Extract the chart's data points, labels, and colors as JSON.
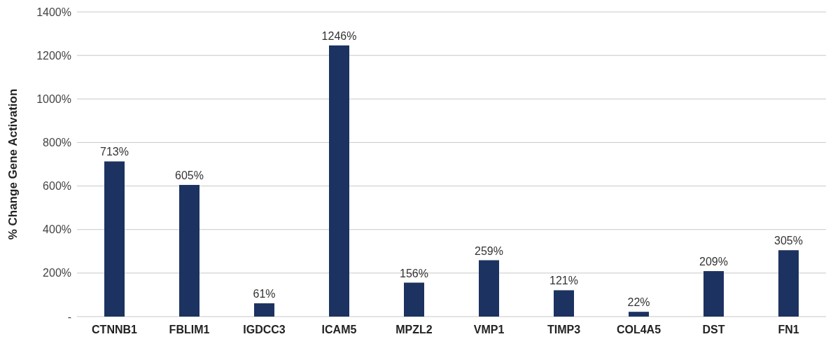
{
  "chart_data": {
    "type": "bar",
    "ylabel": "% Change Gene Activation",
    "categories": [
      "CTNNB1",
      "FBLIM1",
      "IGDCC3",
      "ICAM5",
      "MPZL2",
      "VMP1",
      "TIMP3",
      "COL4A5",
      "DST",
      "FN1"
    ],
    "values": [
      713,
      605,
      61,
      1246,
      156,
      259,
      121,
      22,
      209,
      305
    ],
    "value_labels": [
      "713%",
      "605%",
      "61%",
      "1246%",
      "156%",
      "259%",
      "121%",
      "22%",
      "209%",
      "305%"
    ],
    "color": "#1c3260",
    "ylim": [
      0,
      1400
    ],
    "yticks": [
      {
        "value": 0,
        "label": "-"
      },
      {
        "value": 200,
        "label": "200%"
      },
      {
        "value": 400,
        "label": "400%"
      },
      {
        "value": 600,
        "label": "600%"
      },
      {
        "value": 800,
        "label": "800%"
      },
      {
        "value": 1000,
        "label": "1000%"
      },
      {
        "value": 1200,
        "label": "1200%"
      },
      {
        "value": 1400,
        "label": "1400%"
      }
    ],
    "grid": "y"
  }
}
